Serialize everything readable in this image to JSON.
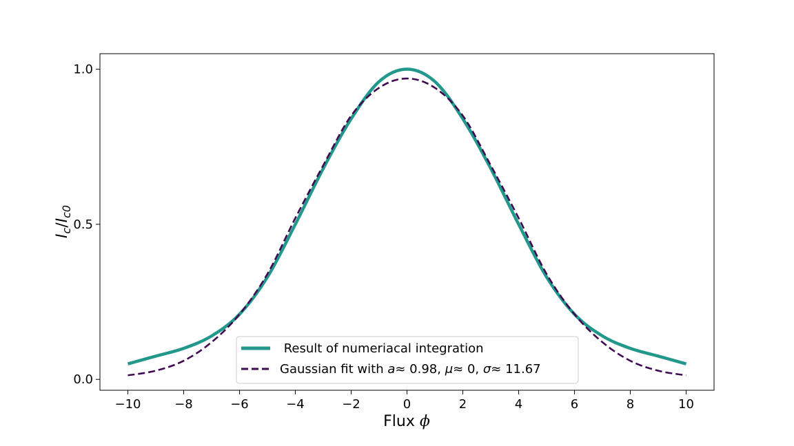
{
  "chart_data": {
    "type": "line",
    "title": "",
    "xlabel": "Flux ϕ",
    "ylabel": "Ic/Ic0",
    "xlim": [
      -11.0,
      11.0
    ],
    "ylim": [
      -0.035,
      1.05
    ],
    "xticks": [
      -10,
      -8,
      -6,
      -4,
      -2,
      0,
      2,
      4,
      6,
      8,
      10
    ],
    "xtick_labels": [
      "−10",
      "−8",
      "−6",
      "−4",
      "−2",
      "0",
      "2",
      "4",
      "6",
      "8",
      "10"
    ],
    "yticks": [
      0.0,
      0.5,
      1.0
    ],
    "ytick_labels": [
      "0.0",
      "0.5",
      "1.0"
    ],
    "grid": false,
    "legend_position": "lower-center",
    "series": [
      {
        "name": "Result of numeriacal integration",
        "color": "#21988b",
        "style": "solid",
        "x": [
          -10,
          -9,
          -8,
          -7,
          -6,
          -5,
          -4,
          -3,
          -2,
          -1,
          0,
          1,
          2,
          3,
          4,
          5,
          6,
          7,
          8,
          9,
          10
        ],
        "y": [
          0.05,
          0.075,
          0.1,
          0.14,
          0.21,
          0.33,
          0.5,
          0.68,
          0.84,
          0.96,
          1.0,
          0.96,
          0.84,
          0.68,
          0.5,
          0.33,
          0.21,
          0.14,
          0.1,
          0.075,
          0.05
        ]
      },
      {
        "name": "Gaussian fit with a≈0.98, μ≈0, σ≈11.67",
        "color": "#3f0a52",
        "style": "dashed",
        "x": [
          -10,
          -9,
          -8,
          -7,
          -6,
          -5,
          -4,
          -3,
          -2,
          -1,
          0,
          1,
          2,
          3,
          4,
          5,
          6,
          7,
          8,
          9,
          10
        ],
        "y": [
          0.013,
          0.028,
          0.06,
          0.12,
          0.21,
          0.34,
          0.52,
          0.69,
          0.85,
          0.94,
          0.97,
          0.94,
          0.85,
          0.69,
          0.52,
          0.34,
          0.21,
          0.12,
          0.06,
          0.028,
          0.013
        ]
      }
    ],
    "legend": {
      "entries": [
        {
          "label": " Result of numeriacal integration"
        },
        {
          "label_prefix": "Gaussian fit with ",
          "a_sym": "a",
          "a_val": "≈ 0.98, ",
          "mu_sym": "μ",
          "mu_val": "≈ 0, ",
          "sigma_sym": "σ",
          "sigma_val": "≈ 11.67"
        }
      ]
    }
  }
}
